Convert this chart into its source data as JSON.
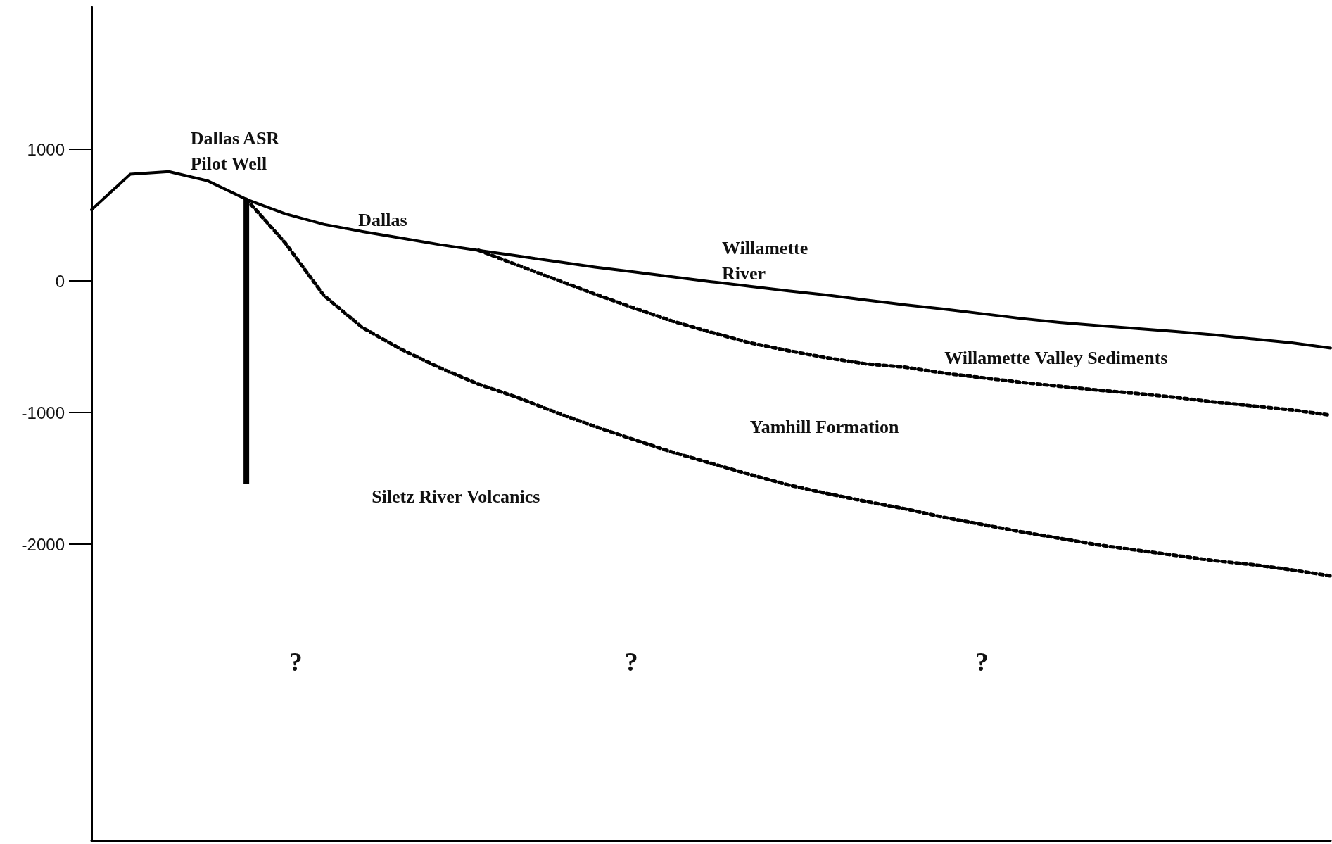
{
  "chart_data": {
    "type": "line",
    "categories": [
      null,
      null,
      null,
      null,
      null,
      null,
      null,
      null,
      null,
      null,
      null,
      null,
      null,
      null,
      null,
      null,
      null,
      null,
      null,
      null,
      null,
      null,
      null,
      null,
      null,
      null,
      null,
      null,
      null,
      null,
      null,
      null,
      null
    ],
    "series": [
      {
        "color": "#000000",
        "line_style": "solid",
        "values": [
          540,
          810,
          830,
          760,
          620,
          510,
          430,
          375,
          325,
          275,
          232,
          190,
          147,
          105,
          69,
          31,
          -6,
          -41,
          -76,
          -108,
          -145,
          -181,
          -213,
          -249,
          -285,
          -315,
          -339,
          -362,
          -384,
          -410,
          -441,
          -470,
          -510
        ]
      },
      {
        "color": "#000000",
        "line_style": "dotted",
        "values": [
          null,
          null,
          null,
          null,
          620,
          290,
          -110,
          -355,
          -520,
          -660,
          -785,
          -885,
          -1000,
          -1105,
          -1205,
          -1300,
          -1385,
          -1470,
          -1550,
          -1615,
          -1675,
          -1730,
          -1795,
          -1850,
          -1905,
          -1955,
          -2005,
          -2045,
          -2085,
          -2125,
          -2155,
          -2195,
          -2240
        ]
      },
      {
        "color": "#000000",
        "line_style": "dotted",
        "values": [
          null,
          null,
          null,
          null,
          null,
          null,
          null,
          null,
          null,
          null,
          232,
          120,
          10,
          -100,
          -205,
          -305,
          -390,
          -470,
          -530,
          -585,
          -630,
          -655,
          -700,
          -735,
          -770,
          -800,
          -830,
          -855,
          -885,
          -920,
          -950,
          -980,
          -1020
        ]
      },
      {
        "type": "bar",
        "color": "#000000",
        "base": [
          null,
          null,
          null,
          null,
          -1540,
          null,
          null,
          null,
          null,
          null,
          null,
          null,
          null,
          null,
          null,
          null,
          null,
          null,
          null,
          null,
          null,
          null,
          null,
          null,
          null,
          null,
          null,
          null,
          null,
          null,
          null,
          null,
          null
        ],
        "values": [
          null,
          null,
          null,
          null,
          2160,
          null,
          null,
          null,
          null,
          null,
          null,
          null,
          null,
          null,
          null,
          null,
          null,
          null,
          null,
          null,
          null,
          null,
          null,
          null,
          null,
          null,
          null,
          null,
          null,
          null,
          null,
          null,
          null
        ]
      }
    ],
    "ylim": [
      -4250,
      2080
    ],
    "yticks": [
      1000,
      0,
      -1000,
      -2000
    ],
    "tick_labels": "y",
    "grid": false,
    "marker": "none",
    "annotations": [
      "Dallas ASR\nPilot Well",
      "Dallas",
      "Willamette\nRiver",
      "Willamette Valley Sediments",
      "Yamhill Formation",
      "Siletz River Volcanics",
      "?",
      "?",
      "?"
    ]
  }
}
